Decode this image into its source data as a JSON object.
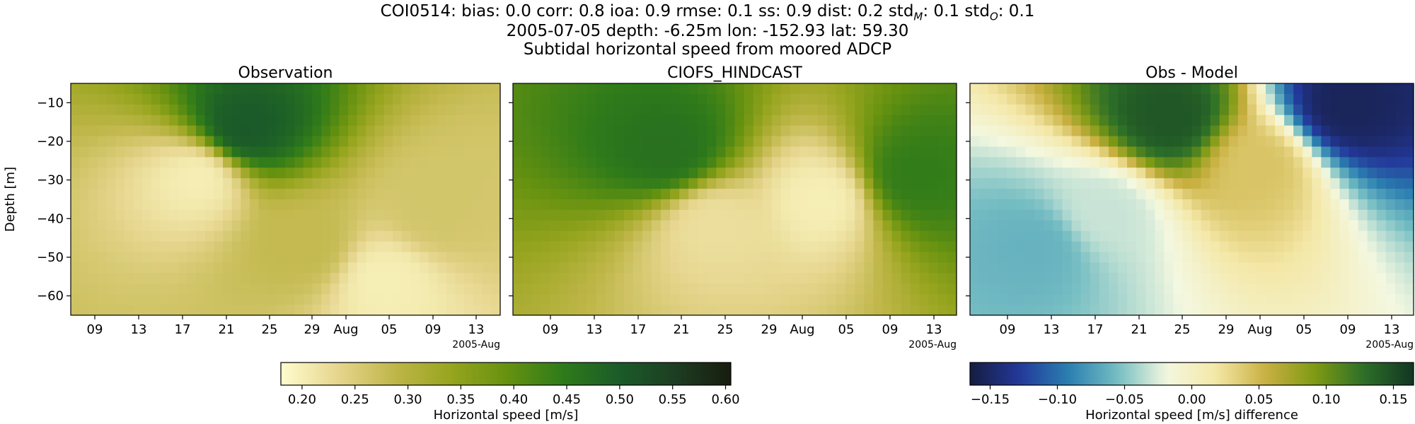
{
  "header": {
    "stats_line": "COI0514: bias: 0.0  corr: 0.8  ioa: 0.9  rmse: 0.1  ss: 0.9  dist: 0.2  std",
    "stats_line_model_sub": "M",
    "stats_line_std_sep": ": 0.1  std",
    "stats_line_obs_sub": "O",
    "stats_line_end": ": 0.1",
    "station_line": "2005-07-05 depth: -6.25m lon: -152.93 lat: 59.30",
    "description_line": "Subtidal horizontal speed from moored ADCP"
  },
  "chart_data": [
    {
      "type": "heatmap",
      "title": "Observation",
      "ylabel": "Depth [m]",
      "x_tick_labels": [
        "09",
        "13",
        "17",
        "21",
        "25",
        "29",
        "Aug",
        "05",
        "09",
        "13"
      ],
      "x_offset_label": "2005-Aug",
      "y_ticks": [
        -10,
        -20,
        -30,
        -40,
        -50,
        -60
      ],
      "ylim": [
        -65,
        -5
      ],
      "colormap": "speed",
      "value_range": [
        0.18,
        0.6
      ],
      "columns": 48,
      "rows": 22,
      "x_range": [
        "2005-07-06",
        "2005-08-13"
      ],
      "pattern": [
        {
          "x": 0.4,
          "y": 0.2,
          "v": 0.5
        },
        {
          "x": 0.55,
          "y": 0.7,
          "v": 0.28
        },
        {
          "x": 0.85,
          "y": 0.55,
          "v": 0.26
        },
        {
          "x": 0.3,
          "y": 0.4,
          "v": 0.2
        },
        {
          "x": 0.73,
          "y": 0.85,
          "v": 0.2
        }
      ]
    },
    {
      "type": "heatmap",
      "title": "CIOFS_HINDCAST",
      "x_tick_labels": [
        "09",
        "13",
        "17",
        "21",
        "25",
        "29",
        "Aug",
        "05",
        "09",
        "13"
      ],
      "x_offset_label": "2005-Aug",
      "y_ticks": [
        -10,
        -20,
        -30,
        -40,
        -50,
        -60
      ],
      "ylim": [
        -65,
        -5
      ],
      "colormap": "speed",
      "value_range": [
        0.18,
        0.6
      ],
      "columns": 48,
      "rows": 22,
      "x_range": [
        "2005-07-06",
        "2005-08-13"
      ],
      "pattern": [
        {
          "x": 0.35,
          "y": 0.3,
          "v": 0.46
        },
        {
          "x": 0.45,
          "y": 0.6,
          "v": 0.22
        },
        {
          "x": 0.7,
          "y": 0.5,
          "v": 0.2
        },
        {
          "x": 0.9,
          "y": 0.4,
          "v": 0.44
        }
      ]
    },
    {
      "type": "heatmap",
      "title": "Obs - Model",
      "x_tick_labels": [
        "09",
        "13",
        "17",
        "21",
        "25",
        "29",
        "Aug",
        "05",
        "09",
        "13"
      ],
      "x_offset_label": "2005-Aug",
      "y_ticks": [
        -10,
        -20,
        -30,
        -40,
        -50,
        -60
      ],
      "ylim": [
        -65,
        -5
      ],
      "colormap": "diff",
      "value_range": [
        -0.16,
        0.16
      ],
      "columns": 48,
      "rows": 22,
      "x_range": [
        "2005-07-06",
        "2005-08-13"
      ],
      "pattern": [
        {
          "x": 0.45,
          "y": 0.15,
          "v": 0.14
        },
        {
          "x": 0.15,
          "y": 0.7,
          "v": -0.06
        },
        {
          "x": 0.85,
          "y": 0.1,
          "v": -0.15
        },
        {
          "x": 0.65,
          "y": 0.35,
          "v": 0.04
        },
        {
          "x": 0.3,
          "y": 0.55,
          "v": -0.03
        }
      ]
    }
  ],
  "colorbars": [
    {
      "label": "Horizontal speed [m/s]",
      "range": [
        0.18,
        0.605
      ],
      "colormap": "speed",
      "ticks": [
        0.2,
        0.25,
        0.3,
        0.35,
        0.4,
        0.45,
        0.5,
        0.55,
        0.6
      ],
      "tick_labels": [
        "0.20",
        "0.25",
        "0.30",
        "0.35",
        "0.40",
        "0.45",
        "0.50",
        "0.55",
        "0.60"
      ]
    },
    {
      "label": "Horizontal speed [m/s] difference",
      "range": [
        -0.165,
        0.165
      ],
      "colormap": "diff",
      "ticks": [
        -0.15,
        -0.1,
        -0.05,
        0.0,
        0.05,
        0.1,
        0.15
      ],
      "tick_labels": [
        "−0.15",
        "−0.10",
        "−0.05",
        "0.00",
        "0.05",
        "0.10",
        "0.15"
      ]
    }
  ],
  "colormaps": {
    "speed": [
      "#fffdcd",
      "#e6d68f",
      "#c0b74a",
      "#98a51f",
      "#679210",
      "#2f7b1a",
      "#1b5c29",
      "#1d3e22",
      "#181c0f"
    ],
    "diff": [
      "#161d40",
      "#23389a",
      "#2a7fb0",
      "#76bec3",
      "#f4f8e0",
      "#f4e7a6",
      "#c9b041",
      "#7e9a14",
      "#2c6f28",
      "#123523"
    ]
  }
}
